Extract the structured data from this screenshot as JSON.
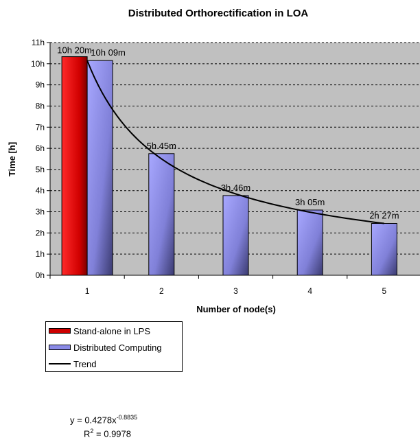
{
  "chart_data": {
    "type": "bar",
    "title": "Distributed Orthorectification in LOA",
    "xlabel": "Number of node(s)",
    "ylabel": "Time [h]",
    "categories": [
      "1",
      "2",
      "3",
      "4",
      "5"
    ],
    "ylim": [
      0,
      11
    ],
    "yticks": [
      "0h",
      "1h",
      "2h",
      "3h",
      "4h",
      "5h",
      "6h",
      "7h",
      "8h",
      "9h",
      "10h",
      "11h"
    ],
    "grid": true,
    "series": [
      {
        "name": "Stand-alone in LPS",
        "color": "#ff1a1a",
        "values": [
          10.333,
          null,
          null,
          null,
          null
        ],
        "labels": [
          "10h 20m",
          "",
          "",
          "",
          ""
        ]
      },
      {
        "name": "Distributed Computing",
        "color": "#9999ff",
        "values": [
          10.15,
          5.75,
          3.767,
          3.083,
          2.45
        ],
        "labels": [
          "10h 09m",
          "5h 45m",
          "3h 46m",
          "3h 05m",
          "2h 27m"
        ]
      }
    ],
    "trend": {
      "name": "Trend",
      "type": "power",
      "coefficient": 0.4278,
      "exponent": -0.8835,
      "equation_prefix": "y = 0.4278x",
      "equation_exponent": "-0.8835",
      "r2_prefix": "R",
      "r2_exponent": "2",
      "r2_suffix": " = 0.9978"
    },
    "legend_position": "bottom-left"
  }
}
